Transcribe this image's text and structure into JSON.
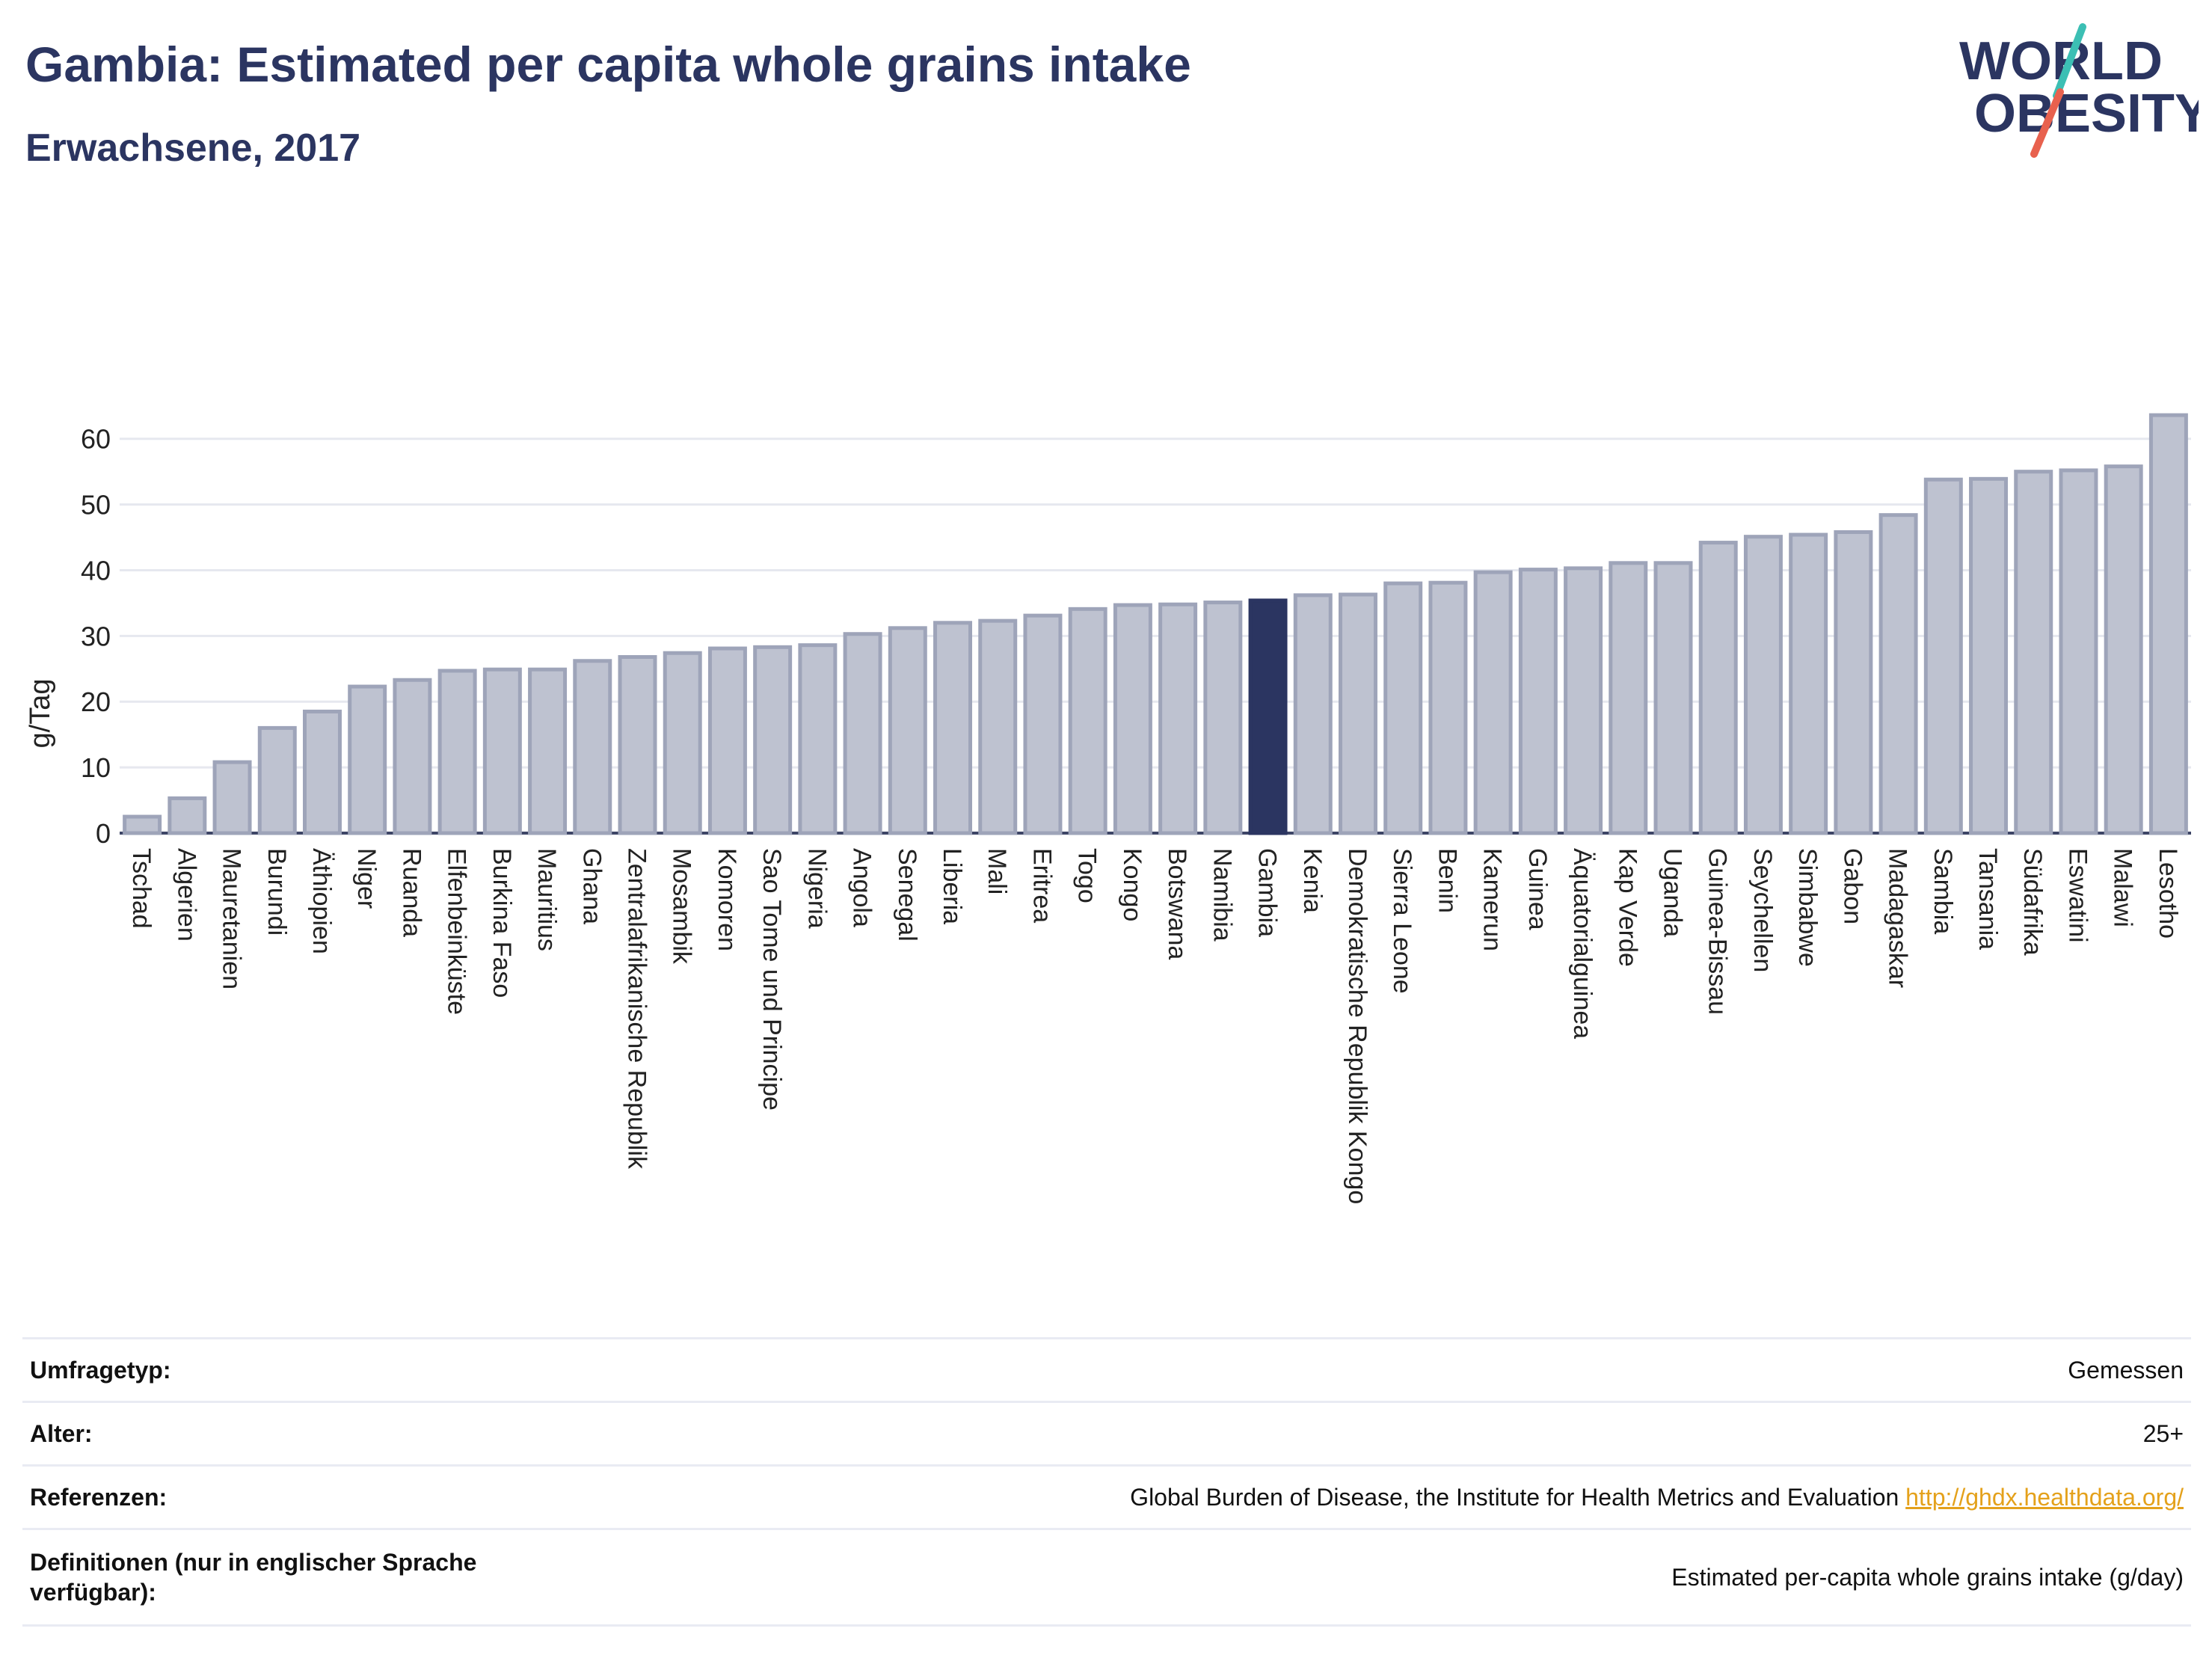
{
  "header": {
    "title": "Gambia: Estimated per capita whole grains intake",
    "subtitle": "Erwachsene, 2017"
  },
  "logo": {
    "line1": "WORLD",
    "line2": "OBESITY"
  },
  "chart_data": {
    "type": "bar",
    "ylabel": "g/Tag",
    "ylim": [
      0,
      66
    ],
    "yticks": [
      0,
      10,
      20,
      30,
      40,
      50,
      60
    ],
    "grid": true,
    "highlight": "Gambia",
    "colors": {
      "bar": "#bec2d0",
      "bar_edge": "#9ea4b9",
      "highlight": "#2b3561",
      "grid": "#e6e8ef"
    },
    "categories": [
      "Tschad",
      "Algerien",
      "Mauretanien",
      "Burundi",
      "Äthiopien",
      "Niger",
      "Ruanda",
      "Elfenbeinküste",
      "Burkina Faso",
      "Mauritius",
      "Ghana",
      "Zentralafrikanische Republik",
      "Mosambik",
      "Komoren",
      "Sao Tome und Principe",
      "Nigeria",
      "Angola",
      "Senegal",
      "Liberia",
      "Mali",
      "Eritrea",
      "Togo",
      "Kongo",
      "Botswana",
      "Namibia",
      "Gambia",
      "Kenia",
      "Demokratische Republik Kongo",
      "Sierra Leone",
      "Benin",
      "Kamerun",
      "Guinea",
      "Äquatorialguinea",
      "Kap Verde",
      "Uganda",
      "Guinea-Bissau",
      "Seychellen",
      "Simbabwe",
      "Gabon",
      "Madagaskar",
      "Sambia",
      "Tansania",
      "Südafrika",
      "Eswatini",
      "Malawi",
      "Lesotho"
    ],
    "values": [
      2.5,
      5.3,
      10.8,
      16.0,
      18.5,
      22.3,
      23.3,
      24.7,
      24.9,
      24.9,
      26.2,
      26.8,
      27.4,
      28.1,
      28.3,
      28.6,
      30.3,
      31.2,
      32.0,
      32.3,
      33.1,
      34.1,
      34.7,
      34.8,
      35.1,
      35.4,
      36.2,
      36.3,
      38.0,
      38.1,
      39.7,
      40.1,
      40.3,
      41.1,
      41.1,
      44.2,
      45.1,
      45.4,
      45.8,
      48.4,
      53.8,
      53.9,
      55.0,
      55.2,
      55.8,
      63.6
    ]
  },
  "meta": {
    "rows": [
      {
        "label": "Umfragetyp:",
        "value": "Gemessen"
      },
      {
        "label": "Alter:",
        "value": "25+"
      },
      {
        "label": "Referenzen:",
        "value": "Global Burden of Disease, the Institute for Health Metrics and Evaluation",
        "link": "http://ghdx.healthdata.org/"
      },
      {
        "label": "Definitionen (nur in englischer Sprache verfügbar):",
        "value": "Estimated per-capita whole grains intake (g/day)"
      }
    ]
  }
}
